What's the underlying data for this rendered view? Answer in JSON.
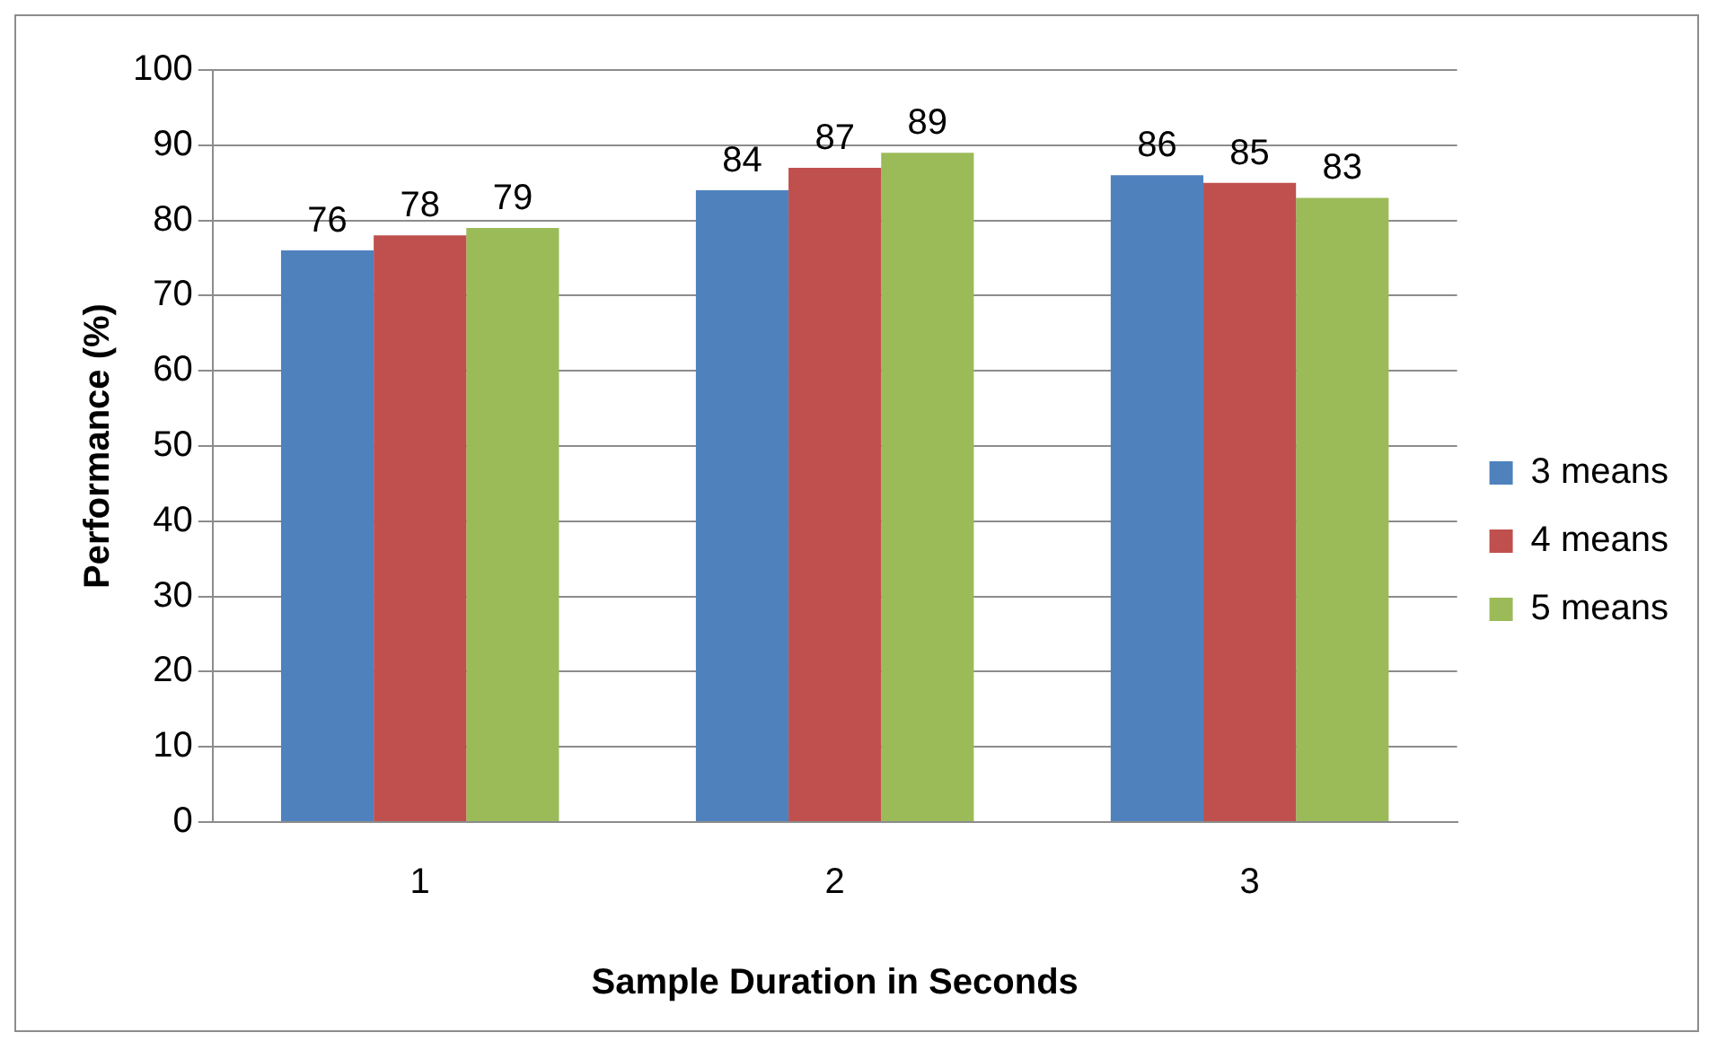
{
  "chart_data": {
    "type": "bar",
    "xlabel": "Sample Duration in Seconds",
    "ylabel": "Performance (%)",
    "categories": [
      "1",
      "2",
      "3"
    ],
    "series": [
      {
        "name": "3 means",
        "color": "#4f81bd",
        "values": [
          76,
          84,
          86
        ]
      },
      {
        "name": "4 means",
        "color": "#c0504d",
        "values": [
          78,
          87,
          85
        ]
      },
      {
        "name": "5 means",
        "color": "#9bbb59",
        "values": [
          79,
          89,
          83
        ]
      }
    ],
    "ylim": [
      0,
      100
    ],
    "yticks": [
      0,
      10,
      20,
      30,
      40,
      50,
      60,
      70,
      80,
      90,
      100
    ],
    "grid": "y",
    "legend": "right",
    "data_labels": true
  }
}
